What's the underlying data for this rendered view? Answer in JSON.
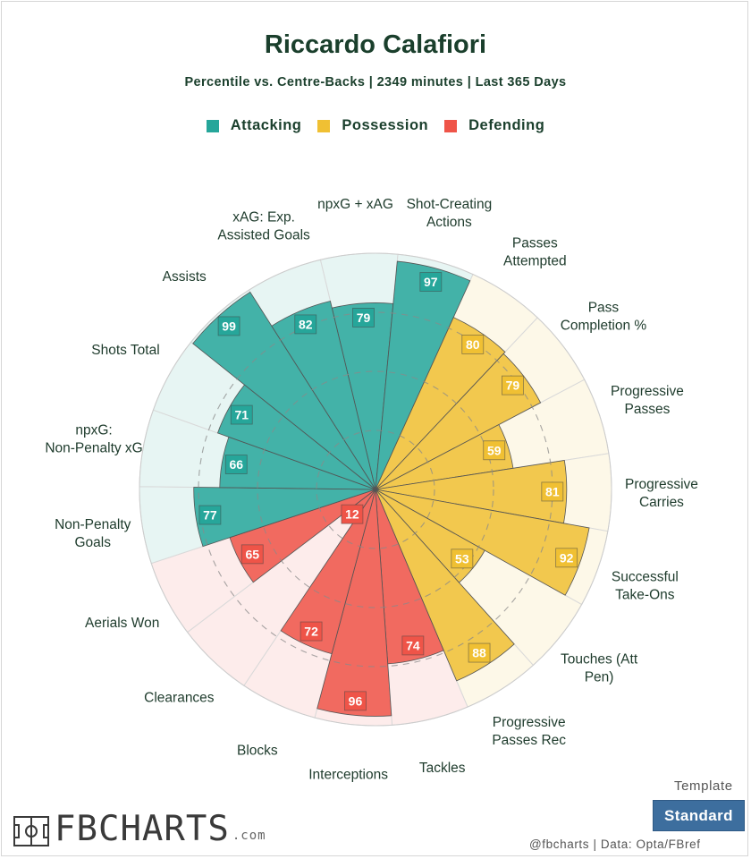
{
  "header": {
    "title": "Riccardo Calafiori",
    "subtitle": "Percentile vs. Centre-Backs | 2349 minutes | Last 365 Days"
  },
  "legend": [
    {
      "label": "Attacking",
      "color": "#26a69a"
    },
    {
      "label": "Possession",
      "color": "#f0c033"
    },
    {
      "label": "Defending",
      "color": "#ef5448"
    }
  ],
  "chart_data": {
    "type": "polar-bar",
    "range": [
      0,
      100
    ],
    "legend_position": "top",
    "categories": [
      {
        "label": "npxG + xAG",
        "value": 79,
        "group": "Attacking"
      },
      {
        "label": "Shot-Creating Actions",
        "value": 97,
        "group": "Attacking"
      },
      {
        "label": "Passes Attempted",
        "value": 80,
        "group": "Possession"
      },
      {
        "label": "Pass Completion %",
        "value": 79,
        "group": "Possession"
      },
      {
        "label": "Progressive Passes",
        "value": 59,
        "group": "Possession"
      },
      {
        "label": "Progressive Carries",
        "value": 81,
        "group": "Possession"
      },
      {
        "label": "Successful Take-Ons",
        "value": 92,
        "group": "Possession"
      },
      {
        "label": "Touches (Att Pen)",
        "value": 53,
        "group": "Possession"
      },
      {
        "label": "Progressive Passes Rec",
        "value": 88,
        "group": "Possession"
      },
      {
        "label": "Tackles",
        "value": 74,
        "group": "Defending"
      },
      {
        "label": "Interceptions",
        "value": 96,
        "group": "Defending"
      },
      {
        "label": "Blocks",
        "value": 72,
        "group": "Defending"
      },
      {
        "label": "Clearances",
        "value": 12,
        "group": "Defending"
      },
      {
        "label": "Aerials Won",
        "value": 65,
        "group": "Defending"
      },
      {
        "label": "Non-Penalty Goals",
        "value": 77,
        "group": "Attacking"
      },
      {
        "label": "npxG: Non-Penalty xG",
        "value": 66,
        "group": "Attacking"
      },
      {
        "label": "Shots Total",
        "value": 71,
        "group": "Attacking"
      },
      {
        "label": "Assists",
        "value": 99,
        "group": "Attacking"
      },
      {
        "label": "xAG: Exp. Assisted Goals",
        "value": 82,
        "group": "Attacking"
      }
    ],
    "group_colors": {
      "Attacking": {
        "fill": "#26a69a",
        "bg": "#e7f5f3",
        "label_bg": "#26a69a",
        "label_text": "#ffffff"
      },
      "Possession": {
        "fill": "#f0c033",
        "bg": "#fdf8e8",
        "label_bg": "#f0c033",
        "label_text": "#ffffff"
      },
      "Defending": {
        "fill": "#ef5448",
        "bg": "#fdeceb",
        "label_bg": "#ef5448",
        "label_text": "#ffffff"
      }
    }
  },
  "template": {
    "label": "Template",
    "button": "Standard"
  },
  "footer": {
    "logo_text": "FBCHARTS",
    "logo_suffix": ".com",
    "credit": "@fbcharts | Data: Opta/FBref"
  }
}
